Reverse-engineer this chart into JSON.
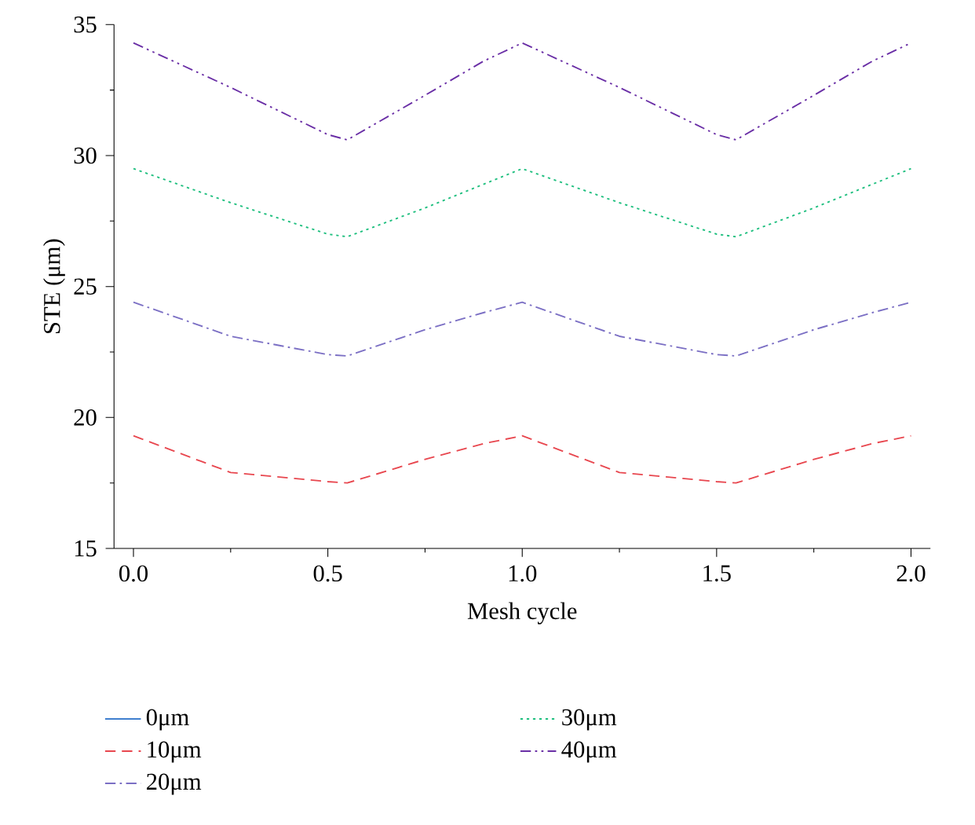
{
  "chart_data": {
    "type": "line",
    "xlabel": "Mesh cycle",
    "ylabel": "STE (μm)",
    "xlim": [
      -0.05,
      2.05
    ],
    "ylim": [
      15,
      35
    ],
    "xticks": [
      {
        "value": 0,
        "label": "0.0"
      },
      {
        "value": 0.5,
        "label": "0.5"
      },
      {
        "value": 1,
        "label": "1.0"
      },
      {
        "value": 1.5,
        "label": "1.5"
      },
      {
        "value": 2,
        "label": "2.0"
      }
    ],
    "yticks": [
      15,
      20,
      25,
      30,
      35
    ],
    "x": [
      0,
      0.25,
      0.5,
      0.55,
      0.75,
      0.9,
      1,
      1.25,
      1.5,
      1.55,
      1.75,
      1.9,
      2
    ],
    "legend": "bottom",
    "grid": false,
    "marker": "none",
    "series": [
      {
        "name": "0μm",
        "color": "#3f7fcf",
        "line_style": "solid",
        "values": [
          null,
          null,
          null,
          null,
          null,
          null,
          null,
          null,
          null,
          null,
          null,
          null,
          null
        ]
      },
      {
        "name": "10μm",
        "color": "#e8474f",
        "line_style": "dashed",
        "values": [
          19.3,
          17.9,
          17.55,
          17.5,
          18.4,
          19.0,
          19.3,
          17.9,
          17.55,
          17.5,
          18.4,
          19.0,
          19.3
        ]
      },
      {
        "name": "20μm",
        "color": "#7b6fc4",
        "line_style": "dashdot",
        "values": [
          24.4,
          23.1,
          22.4,
          22.35,
          23.35,
          24.0,
          24.4,
          23.1,
          22.4,
          22.35,
          23.35,
          24.0,
          24.4
        ]
      },
      {
        "name": "30μm",
        "color": "#1fbf7f",
        "line_style": "dotted",
        "values": [
          29.5,
          28.2,
          27.0,
          26.9,
          28.0,
          28.9,
          29.5,
          28.2,
          27.0,
          26.9,
          28.0,
          28.9,
          29.5
        ]
      },
      {
        "name": "40μm",
        "color": "#6a2fa6",
        "line_style": "dashdotdot",
        "values": [
          34.3,
          32.6,
          30.8,
          30.6,
          32.3,
          33.6,
          34.3,
          32.6,
          30.8,
          30.6,
          32.3,
          33.6,
          34.3
        ]
      }
    ]
  }
}
